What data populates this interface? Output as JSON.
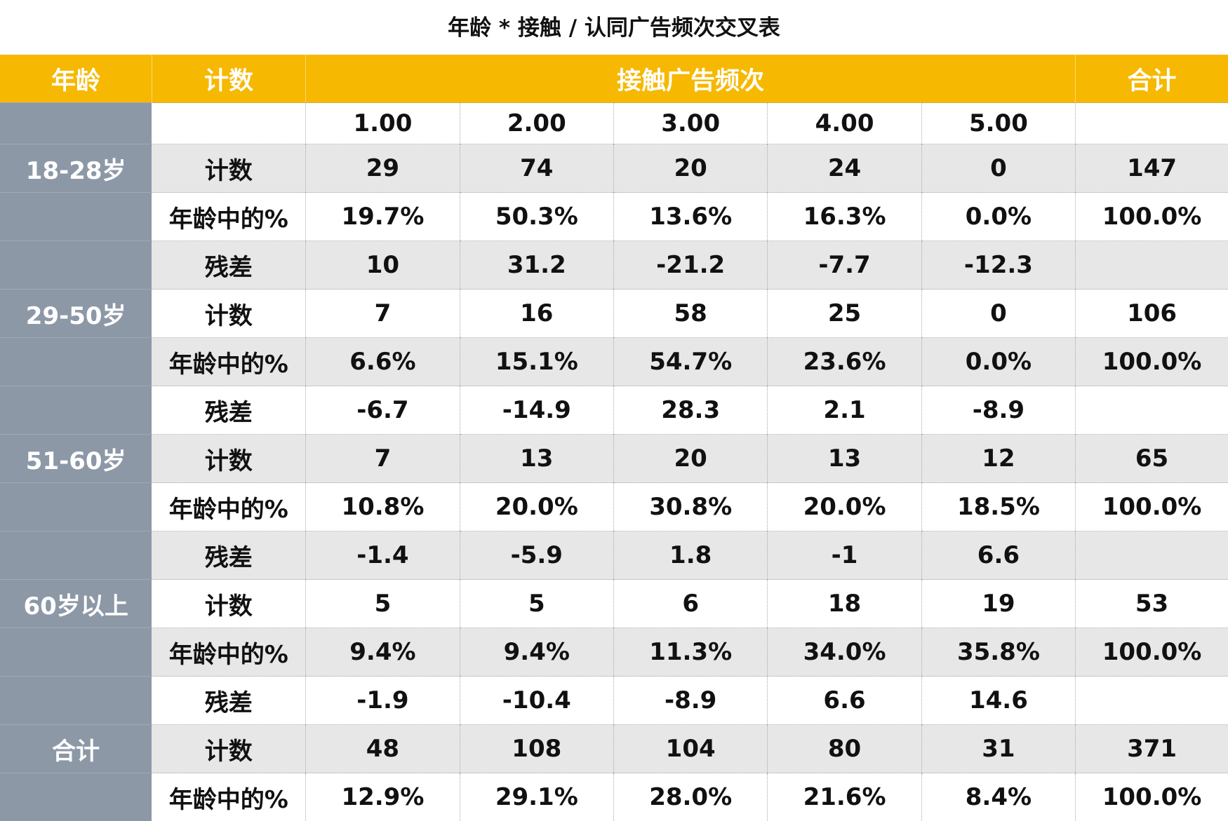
{
  "title": "年龄 * 接触 / 认同广告频次交叉表",
  "header": {
    "age": "年龄",
    "stat": "计数",
    "group": "接触广告频次",
    "total": "合计"
  },
  "frequencies": [
    "1.00",
    "2.00",
    "3.00",
    "4.00",
    "5.00"
  ],
  "rows": [
    {
      "age": "18-28岁",
      "stat": "计数",
      "values": [
        "29",
        "74",
        "20",
        "24",
        "0"
      ],
      "total": "147",
      "shade": true
    },
    {
      "age": "",
      "stat": "年龄中的%",
      "values": [
        "19.7%",
        "50.3%",
        "13.6%",
        "16.3%",
        "0.0%"
      ],
      "total": "100.0%",
      "shade": false
    },
    {
      "age": "",
      "stat": "残差",
      "values": [
        "10",
        "31.2",
        "-21.2",
        "-7.7",
        "-12.3"
      ],
      "total": "",
      "shade": true
    },
    {
      "age": "29-50岁",
      "stat": "计数",
      "values": [
        "7",
        "16",
        "58",
        "25",
        "0"
      ],
      "total": "106",
      "shade": false
    },
    {
      "age": "",
      "stat": "年龄中的%",
      "values": [
        "6.6%",
        "15.1%",
        "54.7%",
        "23.6%",
        "0.0%"
      ],
      "total": "100.0%",
      "shade": true
    },
    {
      "age": "",
      "stat": "残差",
      "values": [
        "-6.7",
        "-14.9",
        "28.3",
        "2.1",
        "-8.9"
      ],
      "total": "",
      "shade": false
    },
    {
      "age": "51-60岁",
      "stat": "计数",
      "values": [
        "7",
        "13",
        "20",
        "13",
        "12"
      ],
      "total": "65",
      "shade": true
    },
    {
      "age": "",
      "stat": "年龄中的%",
      "values": [
        "10.8%",
        "20.0%",
        "30.8%",
        "20.0%",
        "18.5%"
      ],
      "total": "100.0%",
      "shade": false
    },
    {
      "age": "",
      "stat": "残差",
      "values": [
        "-1.4",
        "-5.9",
        "1.8",
        "-1",
        "6.6"
      ],
      "total": "",
      "shade": true
    },
    {
      "age": "60岁以上",
      "stat": "计数",
      "values": [
        "5",
        "5",
        "6",
        "18",
        "19"
      ],
      "total": "53",
      "shade": false
    },
    {
      "age": "",
      "stat": "年龄中的%",
      "values": [
        "9.4%",
        "9.4%",
        "11.3%",
        "34.0%",
        "35.8%"
      ],
      "total": "100.0%",
      "shade": true
    },
    {
      "age": "",
      "stat": "残差",
      "values": [
        "-1.9",
        "-10.4",
        "-8.9",
        "6.6",
        "14.6"
      ],
      "total": "",
      "shade": false
    },
    {
      "age": "合计",
      "stat": "计数",
      "values": [
        "48",
        "108",
        "104",
        "80",
        "31"
      ],
      "total": "371",
      "shade": true
    },
    {
      "age": "",
      "stat": "年龄中的%",
      "values": [
        "12.9%",
        "29.1%",
        "28.0%",
        "21.6%",
        "8.4%"
      ],
      "total": "100.0%",
      "shade": false
    }
  ],
  "colors": {
    "header_bg": "#f6b800",
    "header_text": "#ffffff",
    "age_column_bg": "#8d98a7",
    "shaded_row_bg": "#e7e7e7"
  }
}
